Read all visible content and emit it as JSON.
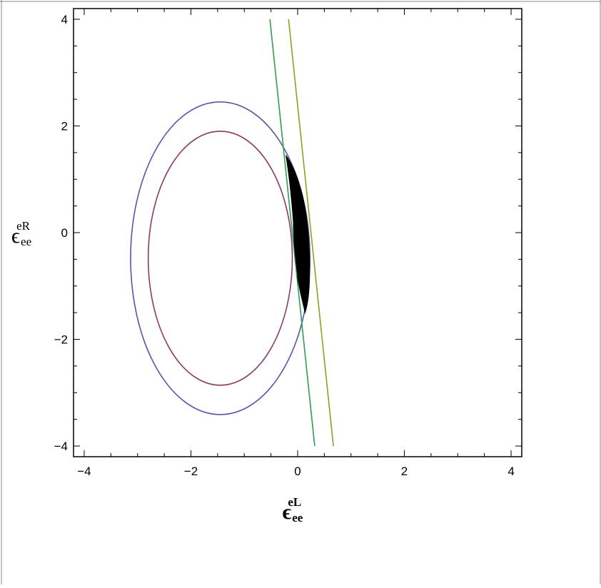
{
  "chart_data": {
    "type": "contour",
    "title": "",
    "xlabel": {
      "base": "ϵ",
      "sub": "ee",
      "sup": "eL"
    },
    "ylabel": {
      "base": "ϵ",
      "sub": "ee",
      "sup": "eR"
    },
    "xlim": [
      -4.2,
      4.2
    ],
    "ylim": [
      -4.2,
      4.2
    ],
    "x_ticks": [
      -4,
      -2,
      0,
      2,
      4
    ],
    "y_ticks": [
      -4,
      -2,
      0,
      2,
      4
    ],
    "x_tick_labels": [
      "−4",
      "−2",
      "0",
      "2",
      "4"
    ],
    "y_tick_labels": [
      "−4",
      "−2",
      "0",
      "2",
      "4"
    ],
    "grid": false,
    "frame_ticks": true,
    "series": [
      {
        "shape": "ellipse",
        "color": "#5555aa",
        "center": [
          -1.45,
          -0.48
        ],
        "radii": [
          1.68,
          2.93
        ]
      },
      {
        "shape": "ellipse",
        "color": "#8b3a62",
        "center": [
          -1.45,
          -0.48
        ],
        "radii": [
          1.35,
          2.38
        ]
      },
      {
        "shape": "line",
        "color": "#2e9e4f",
        "points": [
          [
            -0.52,
            4.0
          ],
          [
            0.32,
            -4.0
          ]
        ]
      },
      {
        "shape": "line",
        "color": "#9a9a20",
        "points": [
          [
            -0.17,
            4.0
          ],
          [
            0.67,
            -4.0
          ]
        ]
      },
      {
        "shape": "filled-region",
        "color": "#000000",
        "description_points": [
          [
            -0.22,
            1.45
          ],
          [
            0.1,
            0.6
          ],
          [
            0.22,
            -0.4
          ],
          [
            0.14,
            -1.5
          ],
          [
            0.0,
            -0.8
          ],
          [
            -0.08,
            0.2
          ]
        ]
      }
    ]
  }
}
